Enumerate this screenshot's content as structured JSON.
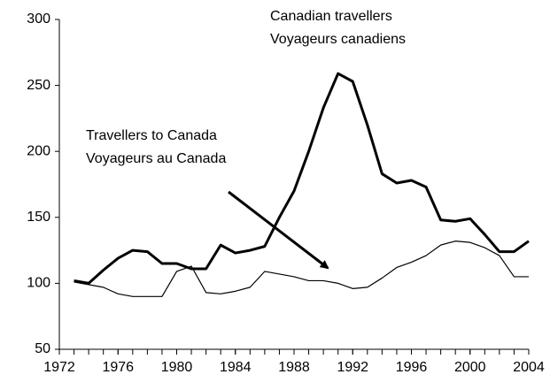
{
  "chart_data": {
    "type": "line",
    "annotations": [
      {
        "lines": [
          "Canadian travellers",
          "Voyageurs canadiens"
        ]
      },
      {
        "lines": [
          "Travellers to Canada",
          "Voyageurs au Canada"
        ]
      }
    ],
    "x": [
      1973,
      1974,
      1975,
      1976,
      1977,
      1978,
      1979,
      1980,
      1981,
      1982,
      1983,
      1984,
      1985,
      1986,
      1987,
      1988,
      1989,
      1990,
      1991,
      1992,
      1993,
      1994,
      1995,
      1996,
      1997,
      1998,
      1999,
      2000,
      2001,
      2002,
      2003,
      2004
    ],
    "series": [
      {
        "color": "#000000",
        "width": 3,
        "values": [
          102,
          100,
          110,
          119,
          125,
          124,
          115,
          115,
          111,
          111,
          129,
          123,
          125,
          128,
          150,
          170,
          200,
          233,
          259,
          253,
          220,
          183,
          176,
          178,
          173,
          148,
          147,
          149,
          137,
          124,
          124,
          132
        ]
      },
      {
        "color": "#000000",
        "width": 1.2,
        "values": [
          101,
          99,
          97,
          92,
          90,
          90,
          90,
          109,
          113,
          93,
          92,
          94,
          97,
          109,
          107,
          105,
          102,
          102,
          100,
          96,
          97,
          104,
          112,
          116,
          121,
          129,
          132,
          131,
          127,
          121,
          105,
          105
        ]
      }
    ],
    "xlim": [
      1972,
      2004
    ],
    "xticks": [
      1972,
      1976,
      1980,
      1984,
      1988,
      1992,
      1996,
      2000,
      2004
    ],
    "ylim": [
      50,
      300
    ],
    "yticks": [
      50,
      100,
      150,
      200,
      250,
      300
    ],
    "grid": false
  }
}
